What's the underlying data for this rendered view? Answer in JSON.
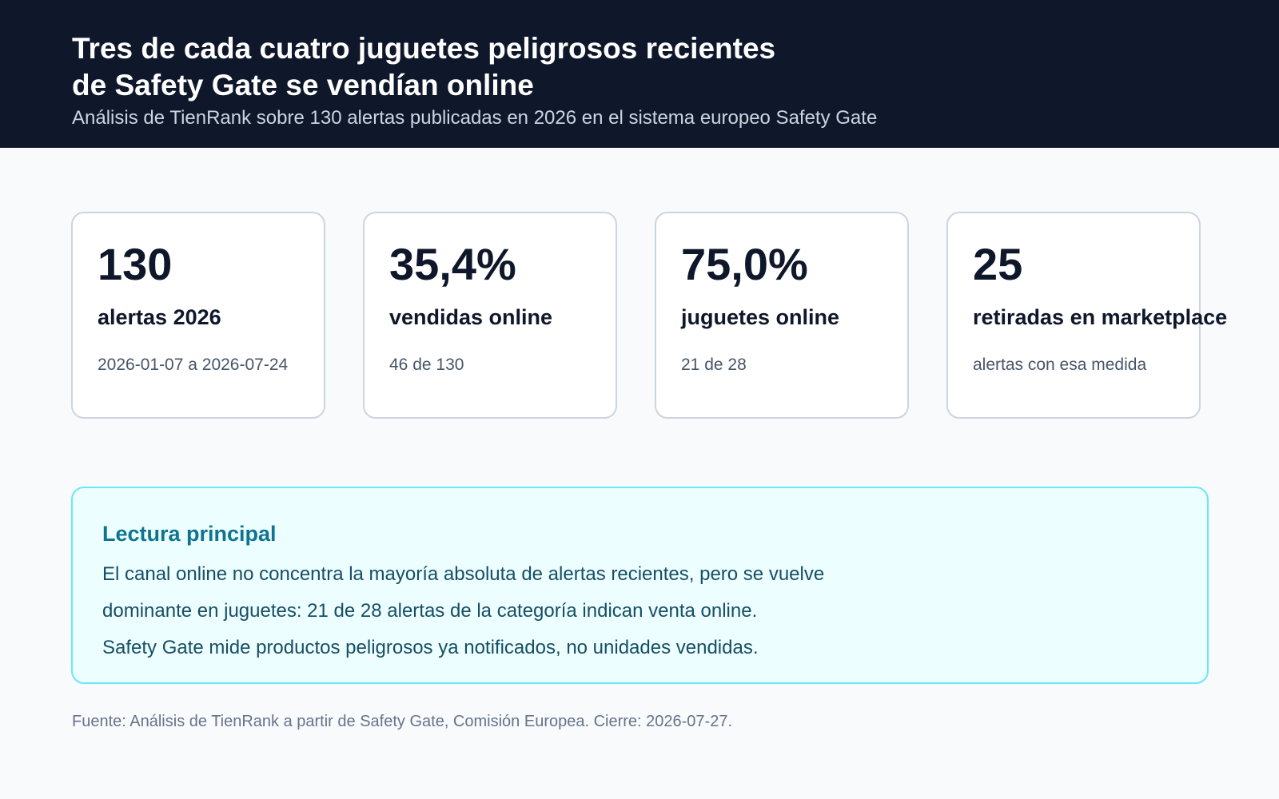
{
  "header": {
    "title_line1": "Tres de cada cuatro juguetes peligrosos recientes",
    "title_line2": "de Safety Gate se vendían online",
    "subtitle": "Análisis de TienRank sobre 130 alertas publicadas en 2026 en el sistema europeo Safety Gate"
  },
  "cards": [
    {
      "value": "130",
      "label": "alertas 2026",
      "note": "2026-01-07 a 2026-07-24"
    },
    {
      "value": "35,4%",
      "label": "vendidas online",
      "note": "46 de 130"
    },
    {
      "value": "75,0%",
      "label": "juguetes online",
      "note": "21 de 28"
    },
    {
      "value": "25",
      "label": "retiradas en marketplace",
      "note": "alertas con esa medida"
    }
  ],
  "insight": {
    "heading": "Lectura principal",
    "lines": [
      "El canal online no concentra la mayoría absoluta de alertas recientes, pero se vuelve",
      "dominante en juguetes: 21 de 28 alertas de la categoría indican venta online.",
      "Safety Gate mide productos peligrosos ya notificados, no unidades vendidas."
    ]
  },
  "source": "Fuente: Análisis de TienRank a partir de Safety Gate, Comisión Europea. Cierre: 2026-07-27.",
  "colors": {
    "header_bg": "#0f172a",
    "page_bg": "#f8fafc",
    "card_border": "#cbd5e1",
    "insight_bg": "#ecfeff",
    "insight_border": "#67e8f9",
    "insight_heading": "#0e7490"
  }
}
